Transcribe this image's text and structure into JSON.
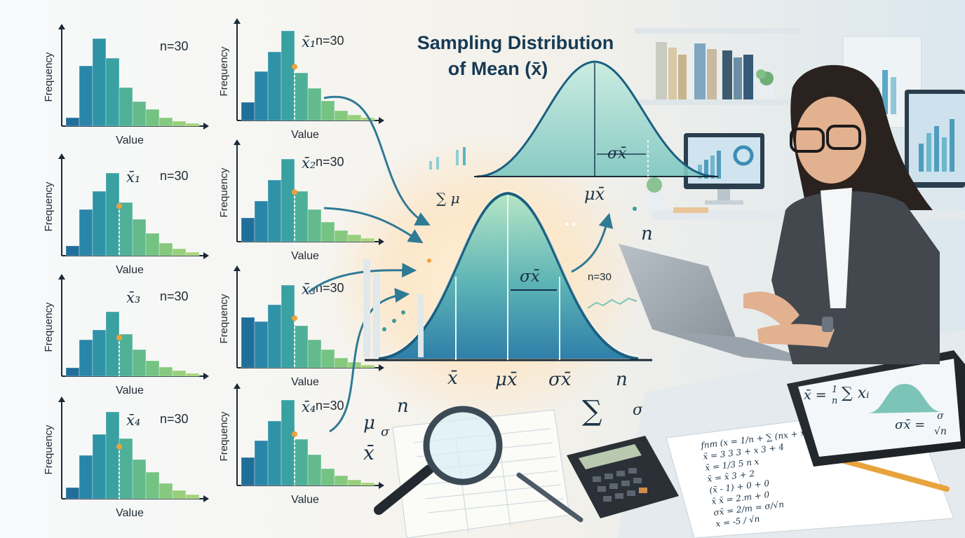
{
  "title": {
    "line1": "Sampling Distribution",
    "line2": "of Mean (x̄)"
  },
  "histograms": {
    "axis_x_label": "Value",
    "axis_y_label": "Frequency",
    "left_column": [
      {
        "n_label": "n=30",
        "mean_label": "",
        "heights": [
          12,
          86,
          125,
          97,
          55,
          35,
          24,
          12,
          7,
          4
        ]
      },
      {
        "n_label": "n=30",
        "mean_label": "x̄₁",
        "heights": [
          14,
          66,
          92,
          118,
          76,
          52,
          32,
          18,
          10,
          5
        ]
      },
      {
        "n_label": "n=30",
        "mean_label": "x̄₃",
        "heights": [
          12,
          52,
          66,
          92,
          60,
          38,
          22,
          13,
          8,
          4
        ]
      },
      {
        "n_label": "n=30",
        "mean_label": "x̄₄",
        "heights": [
          16,
          62,
          92,
          124,
          86,
          56,
          38,
          22,
          12,
          6
        ]
      }
    ],
    "right_column": [
      {
        "n_label": "n=30",
        "mean_label": "x̄₁",
        "heights": [
          26,
          70,
          98,
          128,
          68,
          46,
          28,
          14,
          8,
          4
        ]
      },
      {
        "n_label": "n=30",
        "mean_label": "x̄₂",
        "heights": [
          34,
          58,
          88,
          118,
          72,
          46,
          28,
          16,
          10,
          5
        ]
      },
      {
        "n_label": "n=30",
        "mean_label": "x̄₃",
        "heights": [
          72,
          66,
          90,
          118,
          60,
          40,
          26,
          14,
          8,
          4
        ]
      },
      {
        "n_label": "n=30",
        "mean_label": "x̄₄",
        "heights": [
          40,
          64,
          92,
          122,
          66,
          44,
          24,
          14,
          8,
          4
        ]
      }
    ]
  },
  "main_curve": {
    "label_xbar": "x̄",
    "label_mu": "μx̄",
    "label_sigma": "σx̄",
    "label_n": "n",
    "label_sigma_inner": "σx̄",
    "label_n30": "n=30"
  },
  "top_curve": {
    "label_sigma": "σx̄",
    "label_mu": "μx̄"
  },
  "floating": {
    "sum_mu": "∑ μ",
    "n_laptop": "n",
    "mu_left": "μ",
    "sigma_left": "σ",
    "n_left": "n",
    "xbar_left": "x̄",
    "sum_big": "∑",
    "sigma_formula_left": "σx̄ =",
    "sigma_formula_num": "σ",
    "sigma_formula_den": "√n"
  },
  "tablet": {
    "formula_left": "x̄ = ",
    "formula_frac_num": "1",
    "formula_frac_den": "n",
    "formula_sum": "∑ xᵢ",
    "sigma_left": "σx̄ =",
    "sigma_num": "σ",
    "sigma_den": "√n"
  },
  "notebook": {
    "lines": [
      "fnm (x = 1/n + ∑ (nx + x))",
      "x̄ = 3 3 3 + x 3 + 4",
      "x̄ = 1/3 5 n x",
      "x̄ = x̄ 3 + 2",
      "(x̄ - 1) + 0 + 0",
      "x̄ x̄ = 2.m + 0",
      "σx̄ = 2/m = σ/√n",
      "x = -5 / √n"
    ]
  },
  "colors": {
    "bar_dark": "#1f6f9a",
    "bar_mid": "#2f9a9e",
    "bar_light": "#6cc38a",
    "curve_stroke": "#1a5f80",
    "curve_fill_top": "#a8dcc9",
    "curve_fill_bottom": "#3b8fb3",
    "glow": "#ffd7a6",
    "accent_orange": "#f0a13a"
  }
}
